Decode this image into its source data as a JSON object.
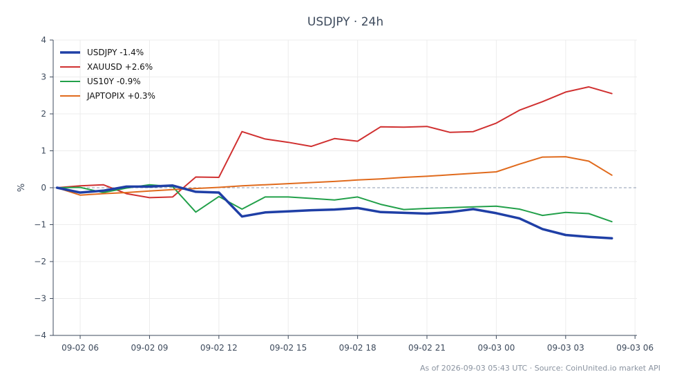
{
  "chart_data": {
    "type": "line",
    "title": "USDJPY · 24h",
    "ylabel": "%",
    "xlabel": "",
    "ylim": [
      -4,
      4
    ],
    "yticks": [
      "4",
      "3",
      "2",
      "1",
      "0",
      "−1",
      "−2",
      "−3",
      "−4"
    ],
    "ytick_values": [
      4,
      3,
      2,
      1,
      0,
      -1,
      -2,
      -3,
      -4
    ],
    "xlim": [
      "2026-09-02 04:50",
      "2026-09-03 06:05"
    ],
    "xticks": [
      "09-02 06",
      "09-02 09",
      "09-02 12",
      "09-02 15",
      "09-02 18",
      "09-02 21",
      "09-03 00",
      "09-03 03",
      "09-03 06"
    ],
    "xtick_values": [
      "2026-09-02 06:00",
      "2026-09-02 09:00",
      "2026-09-02 12:00",
      "2026-09-02 15:00",
      "2026-09-02 18:00",
      "2026-09-02 21:00",
      "2026-09-03 00:00",
      "2026-09-03 03:00",
      "2026-09-03 06:00"
    ],
    "x": [
      "2026-09-02 05:00",
      "2026-09-02 06:00",
      "2026-09-02 07:00",
      "2026-09-02 08:00",
      "2026-09-02 09:00",
      "2026-09-02 10:00",
      "2026-09-02 11:00",
      "2026-09-02 12:00",
      "2026-09-02 13:00",
      "2026-09-02 14:00",
      "2026-09-02 15:00",
      "2026-09-02 16:00",
      "2026-09-02 17:00",
      "2026-09-02 18:00",
      "2026-09-02 19:00",
      "2026-09-02 20:00",
      "2026-09-02 21:00",
      "2026-09-02 22:00",
      "2026-09-02 23:00",
      "2026-09-03 00:00",
      "2026-09-03 01:00",
      "2026-09-03 02:00",
      "2026-09-03 03:00",
      "2026-09-03 04:00",
      "2026-09-03 05:00"
    ],
    "series": [
      {
        "name": "USDJPY -1.4%",
        "color": "#1f3fa6",
        "width": "thick",
        "values": [
          0.0,
          -0.13,
          -0.08,
          0.03,
          0.03,
          0.06,
          -0.11,
          -0.13,
          -0.78,
          -0.67,
          -0.64,
          -0.61,
          -0.59,
          -0.55,
          -0.66,
          -0.68,
          -0.7,
          -0.66,
          -0.58,
          -0.69,
          -0.83,
          -1.12,
          -1.28,
          -1.33,
          -1.37
        ]
      },
      {
        "name": "XAUUSD +2.6%",
        "color": "#d03030",
        "width": "normal",
        "values": [
          0.0,
          0.05,
          0.08,
          -0.16,
          -0.27,
          -0.25,
          0.29,
          0.28,
          1.52,
          1.32,
          1.23,
          1.12,
          1.33,
          1.26,
          1.65,
          1.64,
          1.66,
          1.5,
          1.52,
          1.75,
          2.1,
          2.33,
          2.59,
          2.73,
          2.55
        ]
      },
      {
        "name": "US10Y -0.9%",
        "color": "#22a04a",
        "width": "normal",
        "values": [
          0.0,
          0.01,
          -0.13,
          -0.01,
          0.08,
          0.03,
          -0.66,
          -0.24,
          -0.58,
          -0.25,
          -0.25,
          -0.29,
          -0.33,
          -0.25,
          -0.45,
          -0.59,
          -0.56,
          -0.54,
          -0.52,
          -0.5,
          -0.58,
          -0.75,
          -0.67,
          -0.7,
          -0.92
        ]
      },
      {
        "name": "JAPTOPIX +0.3%",
        "color": "#e06a1c",
        "width": "normal",
        "values": [
          0.0,
          -0.2,
          -0.16,
          -0.13,
          -0.09,
          -0.05,
          -0.02,
          0.01,
          0.05,
          0.08,
          0.11,
          0.14,
          0.17,
          0.21,
          0.24,
          0.28,
          0.31,
          0.35,
          0.39,
          0.43,
          0.64,
          0.83,
          0.84,
          0.72,
          0.34
        ]
      }
    ],
    "grid": true,
    "zero_line": true,
    "legend": "top-left",
    "footer": "As of 2026-09-03 05:43 UTC · Source: CoinUnited.io market API"
  }
}
